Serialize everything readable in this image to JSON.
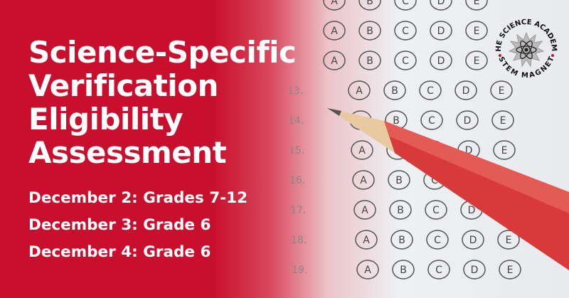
{
  "headline": [
    "Science-Specific",
    "Verification",
    "Eligibility",
    "Assessment"
  ],
  "dates": [
    "December 2: Grades 7-12",
    "December 3: Grade 6",
    "December 4: Grade 6"
  ],
  "logo": {
    "top_text": "THE SCIENCE ACADEMY",
    "bottom_text": "STEM MAGNET"
  },
  "answer_sheet": {
    "question_numbers": [
      "13.",
      "14.",
      "15.",
      "16.",
      "17.",
      "18.",
      "19."
    ],
    "options": [
      "A",
      "B",
      "C",
      "D",
      "E"
    ]
  },
  "colors": {
    "brand_red": "#c8102e",
    "pencil_red": "#d83a3a"
  }
}
